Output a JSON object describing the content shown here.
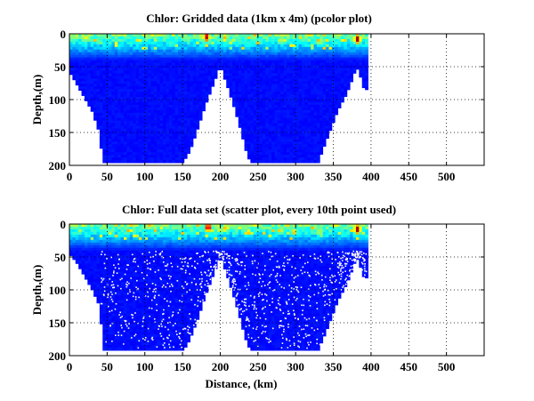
{
  "chart_data": [
    {
      "type": "heatmap",
      "title": "Chlor: Gridded data (1km x 4m) (pcolor plot)",
      "xlabel": "",
      "ylabel": "Depth,(m)",
      "xlim": [
        0,
        550
      ],
      "ylim": [
        0,
        200
      ],
      "y_reversed": true,
      "grid": true,
      "xticks": [
        0,
        50,
        100,
        150,
        200,
        250,
        300,
        350,
        400,
        450,
        500
      ],
      "yticks": [
        0,
        50,
        100,
        150,
        200
      ],
      "data_extent": {
        "x": [
          0,
          393
        ]
      },
      "bottom_profile": {
        "x": [
          0,
          10,
          20,
          30,
          38,
          45,
          60,
          80,
          100,
          120,
          140,
          150,
          155,
          160,
          165,
          170,
          175,
          180,
          185,
          190,
          195,
          198,
          200,
          202,
          205,
          210,
          215,
          220,
          225,
          230,
          235,
          240,
          260,
          280,
          300,
          320,
          330,
          335,
          340,
          345,
          350,
          355,
          360,
          365,
          370,
          375,
          378,
          381,
          384,
          386,
          388,
          390,
          393
        ],
        "depth": [
          58,
          78,
          98,
          118,
          145,
          196,
          196,
          196,
          196,
          196,
          196,
          196,
          188,
          178,
          162,
          145,
          128,
          110,
          95,
          80,
          65,
          55,
          50,
          55,
          66,
          82,
          100,
          118,
          138,
          160,
          182,
          196,
          196,
          196,
          196,
          196,
          196,
          180,
          165,
          150,
          135,
          120,
          108,
          98,
          85,
          70,
          60,
          52,
          58,
          66,
          75,
          82,
          85
        ]
      },
      "surface_hotspots": [
        {
          "x": 180,
          "depth": 3,
          "level": 0.95
        },
        {
          "x": 204,
          "depth": 4,
          "level": 0.7
        },
        {
          "x": 380,
          "depth": 6,
          "level": 1.0
        },
        {
          "x": 278,
          "depth": 8,
          "level": 0.6
        },
        {
          "x": 330,
          "depth": 10,
          "level": 0.6
        }
      ]
    },
    {
      "type": "scatter",
      "title": "Chlor: Full data set (scatter plot, every 10th point used)",
      "xlabel": "Distance, (km)",
      "ylabel": "Depth,(m)",
      "xlim": [
        0,
        550
      ],
      "ylim": [
        0,
        200
      ],
      "y_reversed": true,
      "grid": true,
      "xticks": [
        0,
        50,
        100,
        150,
        200,
        250,
        300,
        350,
        400,
        450,
        500
      ],
      "yticks": [
        0,
        50,
        100,
        150,
        200
      ],
      "data_extent": {
        "x": [
          0,
          393
        ]
      },
      "bottom_profile": {
        "x": [
          0,
          10,
          20,
          30,
          40,
          45,
          60,
          80,
          100,
          120,
          140,
          150,
          155,
          160,
          165,
          170,
          175,
          180,
          185,
          190,
          195,
          198,
          200,
          202,
          205,
          210,
          215,
          220,
          225,
          230,
          235,
          240,
          260,
          280,
          300,
          320,
          330,
          335,
          340,
          345,
          350,
          355,
          360,
          365,
          370,
          375,
          378,
          381,
          384,
          386,
          388,
          390,
          393
        ],
        "depth": [
          45,
          60,
          80,
          100,
          125,
          192,
          192,
          192,
          192,
          192,
          192,
          192,
          186,
          175,
          160,
          145,
          128,
          110,
          95,
          80,
          65,
          55,
          48,
          55,
          65,
          82,
          100,
          118,
          138,
          160,
          180,
          192,
          192,
          192,
          192,
          192,
          192,
          178,
          165,
          150,
          135,
          120,
          108,
          98,
          85,
          70,
          60,
          52,
          58,
          66,
          75,
          80,
          82
        ]
      },
      "surface_hotspots": [
        {
          "x": 182,
          "depth": 3,
          "level": 0.95
        },
        {
          "x": 205,
          "depth": 4,
          "level": 0.7
        },
        {
          "x": 380,
          "depth": 6,
          "level": 1.0
        },
        {
          "x": 278,
          "depth": 8,
          "level": 0.6
        },
        {
          "x": 330,
          "depth": 10,
          "level": 0.6
        }
      ]
    }
  ]
}
